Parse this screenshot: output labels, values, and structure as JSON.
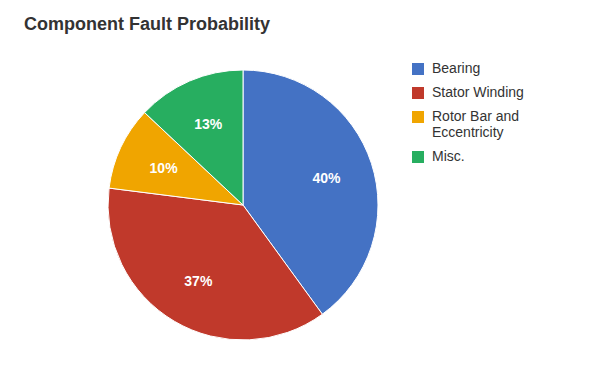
{
  "chart_data": {
    "type": "pie",
    "title": "Component Fault Probability",
    "categories": [
      "Bearing",
      "Stator Winding",
      "Rotor Bar and\nEccentricity",
      "Misc."
    ],
    "values": [
      40,
      37,
      10,
      13
    ],
    "value_labels": [
      "40%",
      "37%",
      "10%",
      "13%"
    ],
    "colors": [
      "#4472C4",
      "#C0392B",
      "#F0A500",
      "#27AE60"
    ],
    "data_labels": true,
    "legend": "upper right"
  }
}
